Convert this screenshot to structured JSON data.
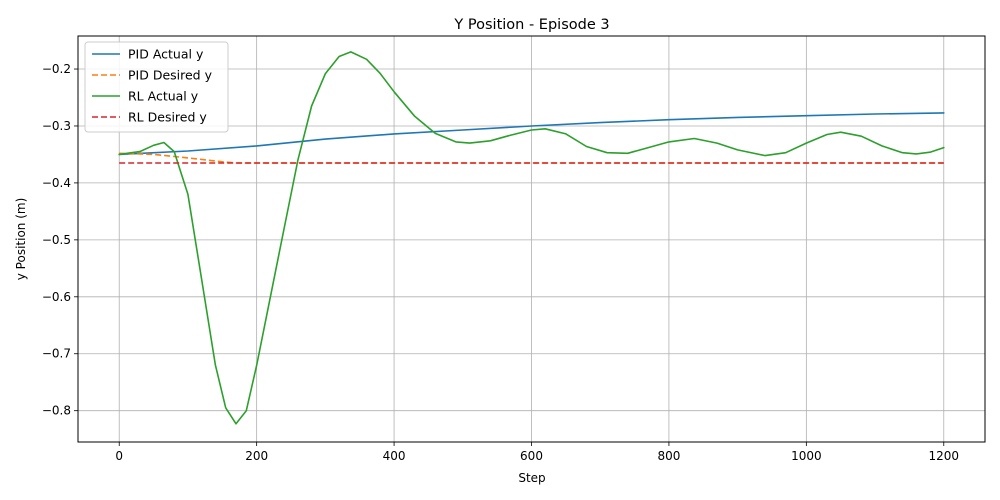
{
  "chart_data": {
    "type": "line",
    "title": "Y Position - Episode 3",
    "xlabel": "Step",
    "ylabel": "y Position (m)",
    "xlim": [
      -60,
      1260
    ],
    "ylim": [
      -0.855,
      -0.142
    ],
    "xticks": [
      0,
      200,
      400,
      600,
      800,
      1000,
      1200
    ],
    "xtick_labels": [
      "0",
      "200",
      "400",
      "600",
      "800",
      "1000",
      "1200"
    ],
    "yticks": [
      -0.8,
      -0.7,
      -0.6,
      -0.5,
      -0.4,
      -0.3,
      -0.2
    ],
    "ytick_labels": [
      "−0.8",
      "−0.7",
      "−0.6",
      "−0.5",
      "−0.4",
      "−0.3",
      "−0.2"
    ],
    "grid": true,
    "legend_position": "top-left",
    "series": [
      {
        "name": "PID Actual y",
        "color": "#1f77b4",
        "dash": "solid",
        "x": [
          0,
          100,
          200,
          300,
          400,
          500,
          600,
          700,
          800,
          900,
          1000,
          1100,
          1200
        ],
        "y": [
          -0.35,
          -0.344,
          -0.335,
          -0.323,
          -0.314,
          -0.307,
          -0.3,
          -0.294,
          -0.289,
          -0.285,
          -0.282,
          -0.279,
          -0.277
        ]
      },
      {
        "name": "PID Desired y",
        "color": "#ff7f0e",
        "dash": "dashed",
        "x": [
          0,
          50,
          100,
          150,
          170,
          200,
          400,
          600,
          800,
          1000,
          1200
        ],
        "y": [
          -0.348,
          -0.35,
          -0.356,
          -0.363,
          -0.365,
          -0.365,
          -0.365,
          -0.365,
          -0.365,
          -0.365,
          -0.365
        ]
      },
      {
        "name": "RL Actual y",
        "color": "#2ca02c",
        "dash": "solid",
        "x": [
          0,
          30,
          50,
          65,
          80,
          100,
          120,
          140,
          155,
          170,
          185,
          200,
          220,
          240,
          260,
          280,
          300,
          320,
          337,
          360,
          380,
          400,
          430,
          460,
          490,
          510,
          540,
          570,
          600,
          620,
          650,
          680,
          710,
          740,
          770,
          800,
          837,
          870,
          900,
          940,
          970,
          1000,
          1030,
          1050,
          1080,
          1110,
          1140,
          1160,
          1180,
          1200
        ],
        "y": [
          -0.35,
          -0.345,
          -0.334,
          -0.329,
          -0.345,
          -0.42,
          -0.57,
          -0.72,
          -0.795,
          -0.823,
          -0.8,
          -0.72,
          -0.6,
          -0.48,
          -0.36,
          -0.265,
          -0.208,
          -0.178,
          -0.17,
          -0.183,
          -0.208,
          -0.24,
          -0.283,
          -0.313,
          -0.328,
          -0.33,
          -0.326,
          -0.316,
          -0.307,
          -0.305,
          -0.314,
          -0.336,
          -0.347,
          -0.348,
          -0.338,
          -0.328,
          -0.322,
          -0.33,
          -0.342,
          -0.352,
          -0.347,
          -0.33,
          -0.315,
          -0.311,
          -0.318,
          -0.335,
          -0.347,
          -0.349,
          -0.346,
          -0.338
        ]
      },
      {
        "name": "RL Desired y",
        "color": "#d62728",
        "dash": "dashed",
        "x": [
          0,
          1200
        ],
        "y": [
          -0.365,
          -0.365
        ]
      }
    ]
  }
}
